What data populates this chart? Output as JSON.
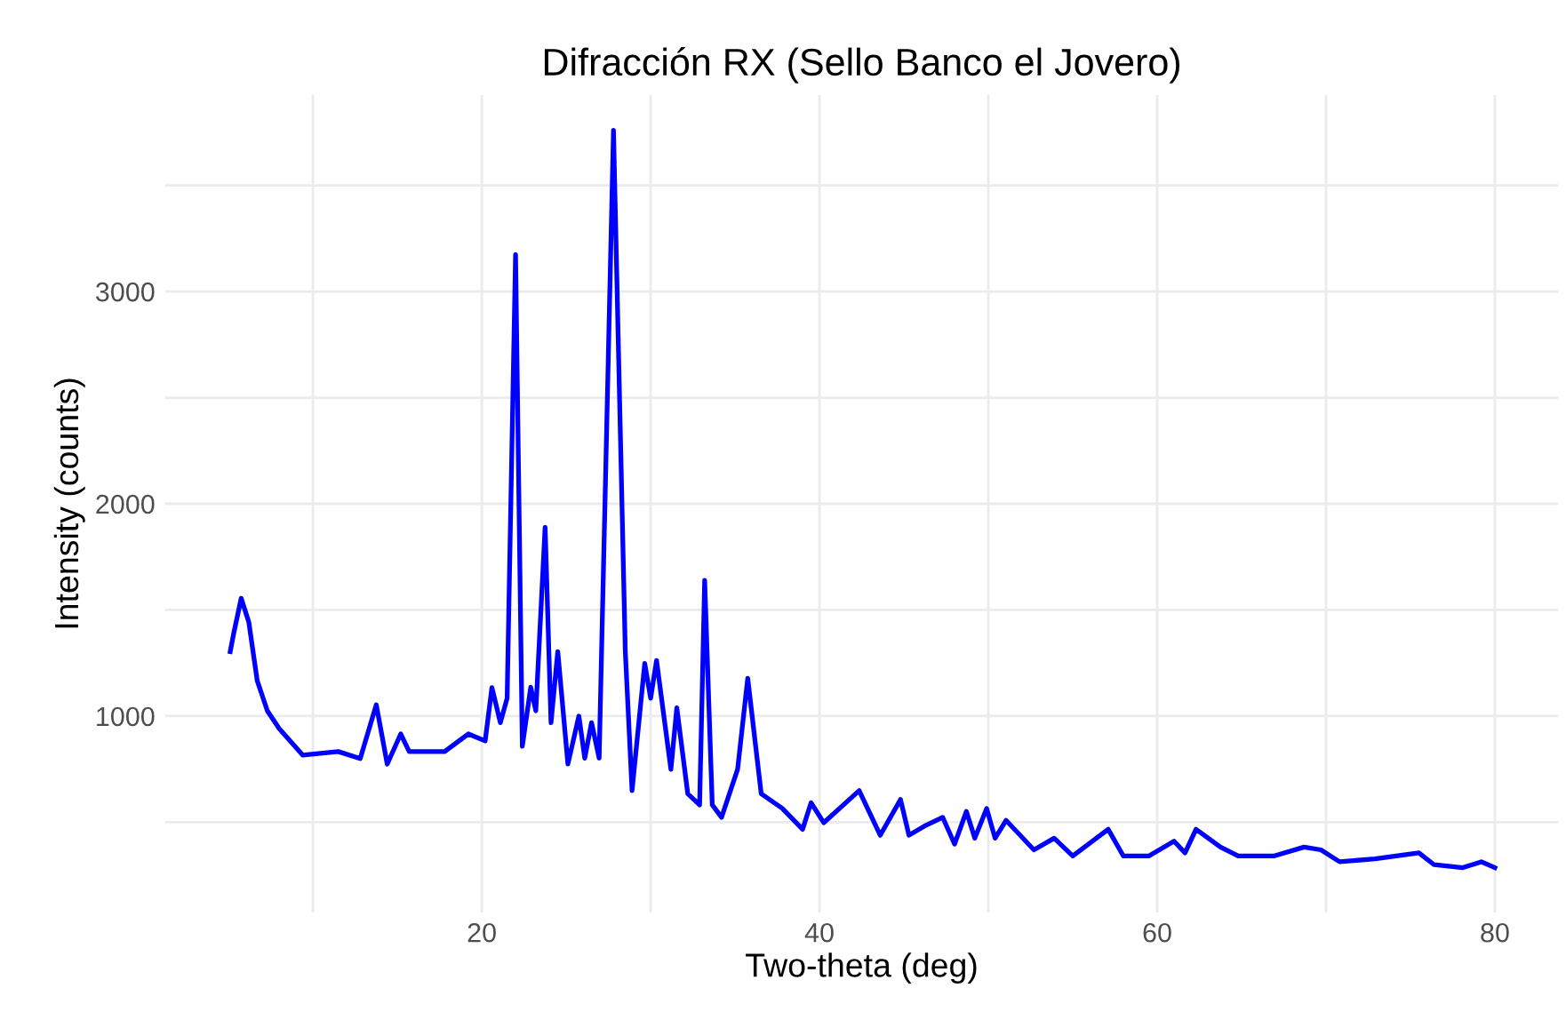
{
  "chart_data": {
    "type": "line",
    "title": "Difracción RX (Sello Banco el Jovero)",
    "xlabel": "Two-theta (deg)",
    "ylabel": "Intensity (counts)",
    "xlim": [
      1.25,
      83.75
    ],
    "ylim": [
      75,
      3925
    ],
    "xticks": [
      {
        "value": 10,
        "label": null
      },
      20,
      {
        "value": 30,
        "label": null
      },
      40,
      {
        "value": 50,
        "label": null
      },
      60,
      {
        "value": 70,
        "label": null
      },
      80
    ],
    "yticks": [
      {
        "value": 500,
        "label": null
      },
      1000,
      {
        "value": 1500,
        "label": null
      },
      2000,
      {
        "value": 2500,
        "label": null
      },
      3000,
      {
        "value": 3500,
        "label": null
      }
    ],
    "grid": true,
    "line_style": "solid",
    "marker": "none",
    "series": [
      {
        "color": "#0000ff",
        "x": [
          5.1,
          5.3,
          5.75,
          6.2,
          6.7,
          7.3,
          8.0,
          9.4,
          11.5,
          12.8,
          13.75,
          14.4,
          15.2,
          15.7,
          17.8,
          19.2,
          20.2,
          20.6,
          21.1,
          21.5,
          22.0,
          22.4,
          22.9,
          23.2,
          23.75,
          24.1,
          24.5,
          25.1,
          25.75,
          26.1,
          26.5,
          26.95,
          27.8,
          28.5,
          28.9,
          29.65,
          30.0,
          30.35,
          31.2,
          31.55,
          32.2,
          32.9,
          33.2,
          33.65,
          34.2,
          35.15,
          35.75,
          36.55,
          37.8,
          39.0,
          39.5,
          40.25,
          42.35,
          43.6,
          44.8,
          45.3,
          46.2,
          47.3,
          48.0,
          48.7,
          49.2,
          49.9,
          50.4,
          51.05,
          52.7,
          53.9,
          55.0,
          57.1,
          58.0,
          59.5,
          61.0,
          61.65,
          62.3,
          63.75,
          64.8,
          66.9,
          68.7,
          69.7,
          70.8,
          72.9,
          75.5,
          76.4,
          78.1,
          79.2,
          80.0
        ],
        "values": [
          1304,
          1387,
          1555,
          1443,
          1167,
          1025,
          941,
          816,
          833,
          800,
          1053,
          774,
          916,
          833,
          833,
          916,
          883,
          1134,
          969,
          1084,
          3173,
          858,
          1136,
          1025,
          1890,
          969,
          1304,
          774,
          1000,
          802,
          969,
          802,
          3759,
          1304,
          649,
          1248,
          1084,
          1262,
          749,
          1039,
          634,
          582,
          1639,
          582,
          523,
          749,
          1178,
          634,
          565,
          467,
          592,
          498,
          649,
          439,
          607,
          439,
          481,
          523,
          397,
          551,
          425,
          565,
          425,
          509,
          370,
          425,
          341,
          467,
          341,
          341,
          411,
          356,
          467,
          383,
          341,
          341,
          383,
          370,
          314,
          328,
          356,
          300,
          286,
          314,
          286
        ]
      }
    ]
  }
}
